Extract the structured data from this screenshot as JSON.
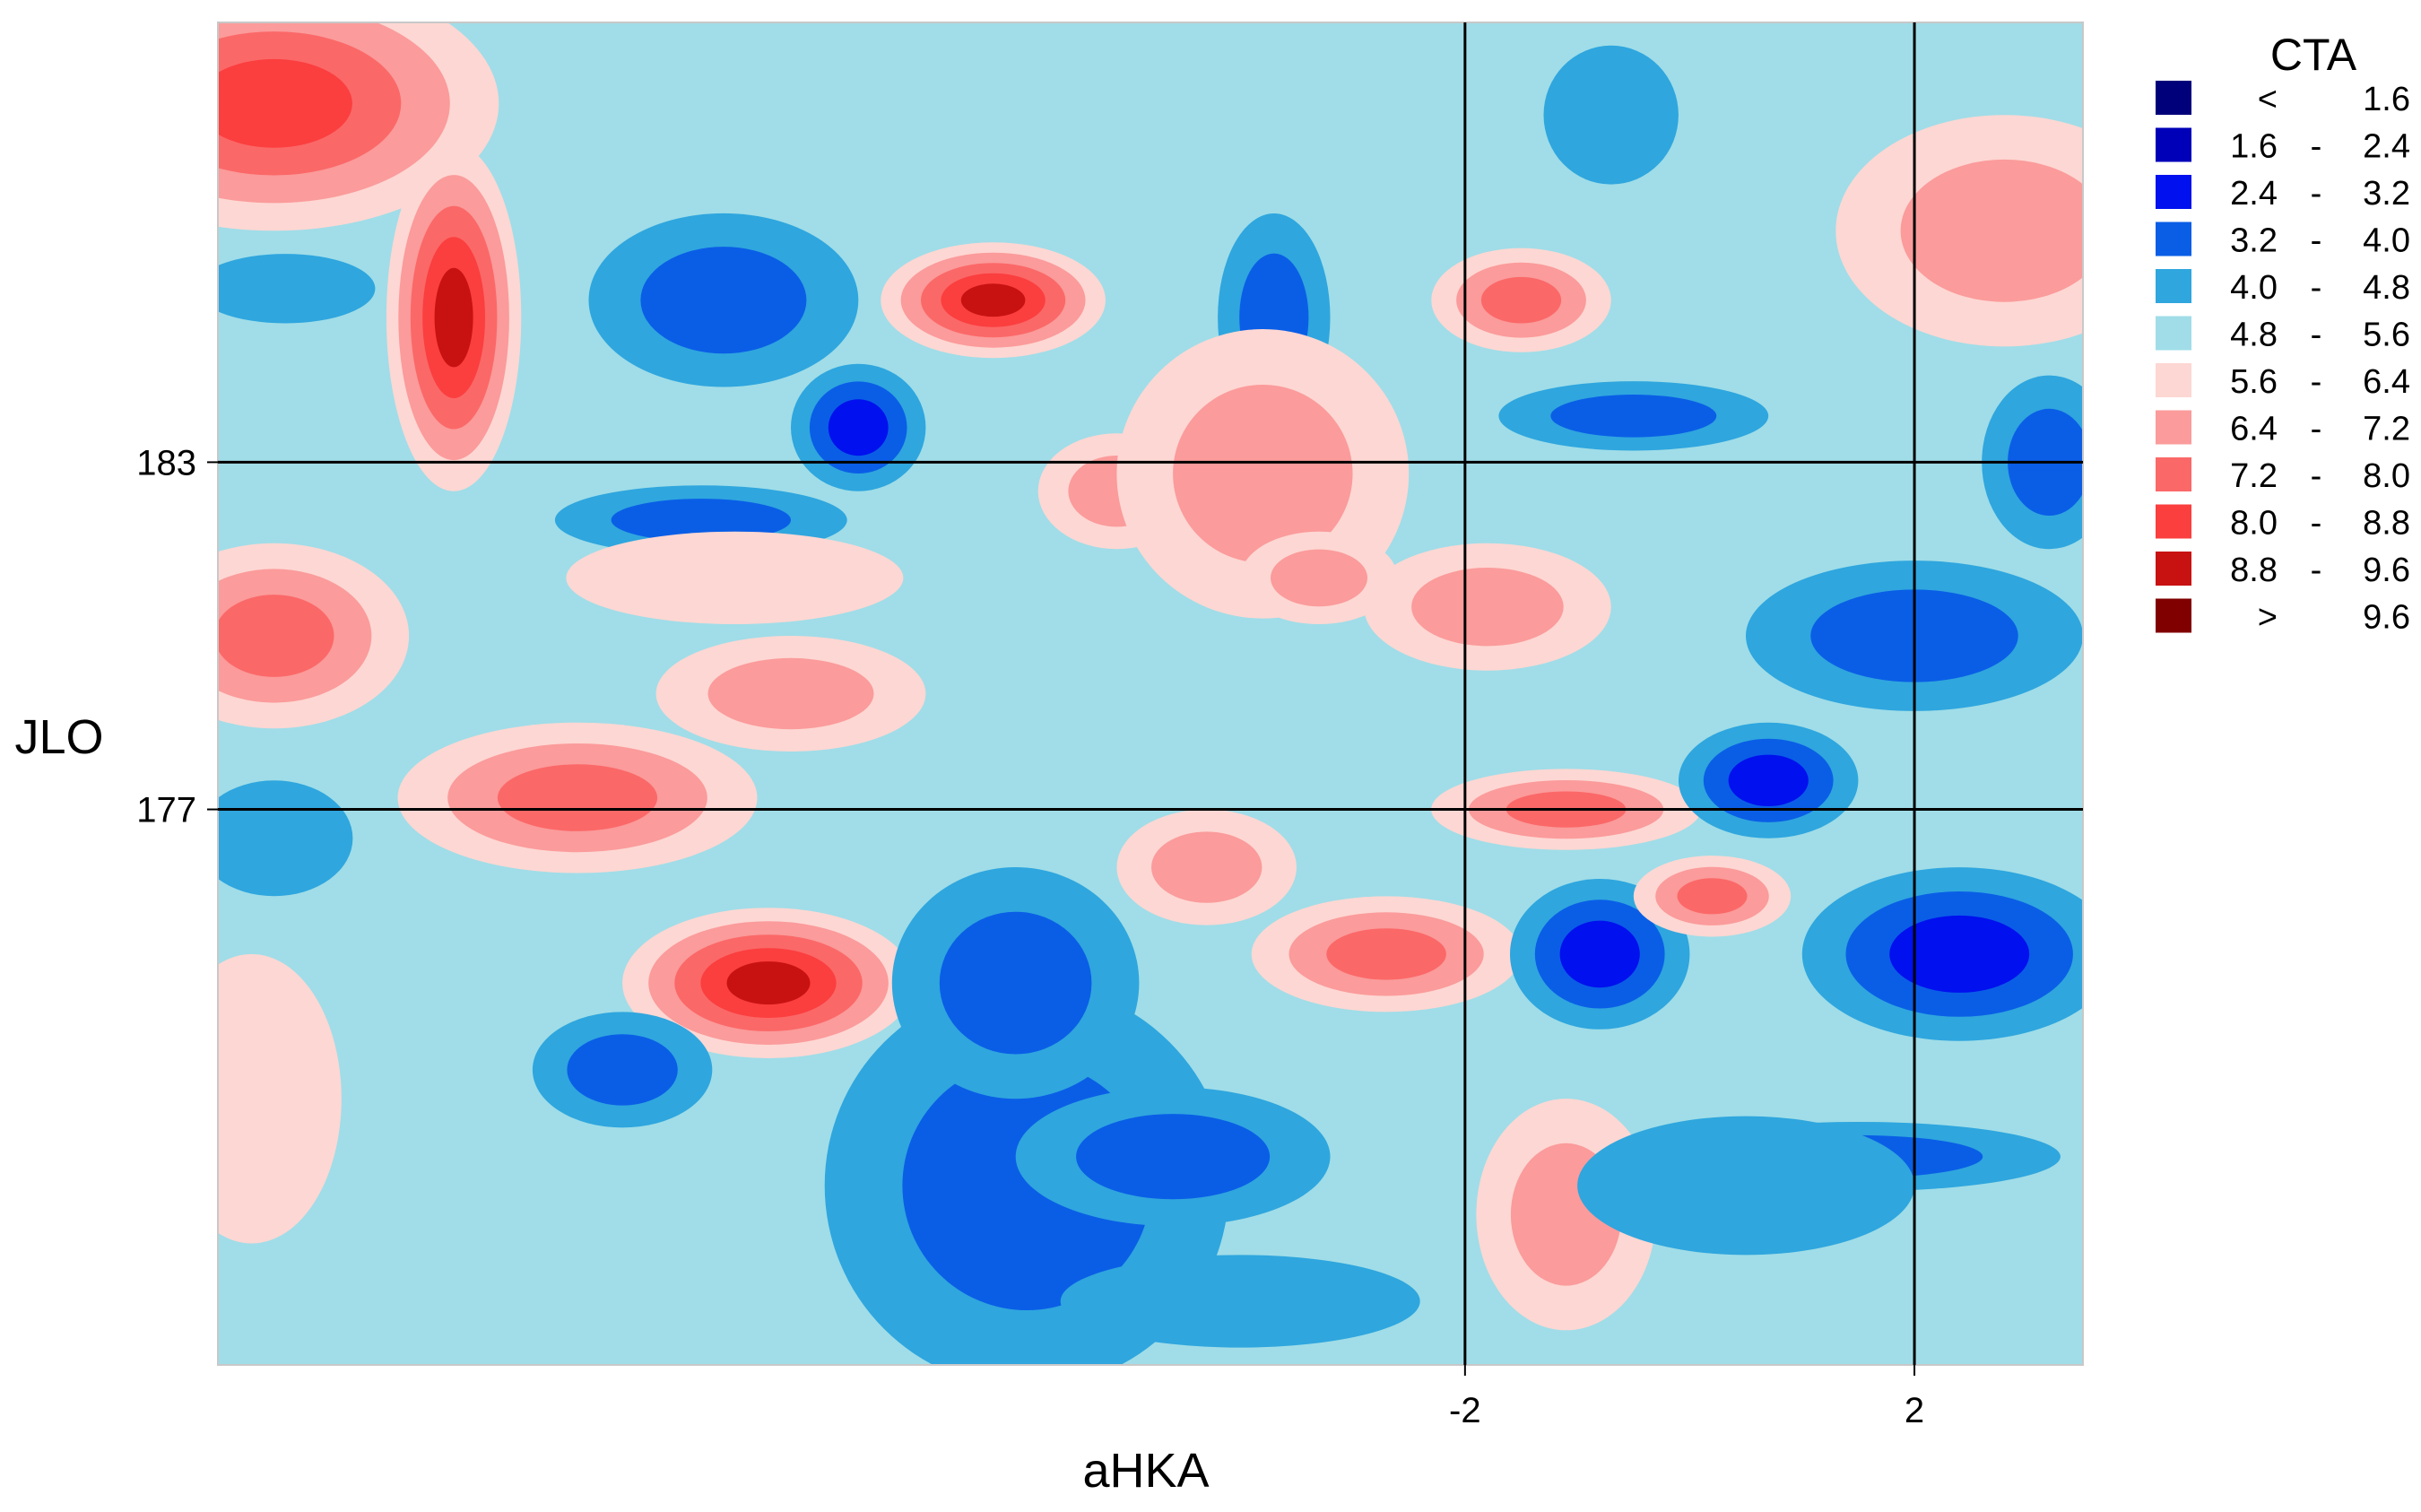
{
  "chart_data": {
    "type": "heatmap",
    "title": "",
    "xlabel": "aHKA",
    "ylabel": "JLO",
    "xlim": [
      -13.1,
      3.5
    ],
    "ylim": [
      190.6,
      167.4
    ],
    "x_ticks": [
      {
        "value": -2,
        "label": "-2"
      },
      {
        "value": 2,
        "label": "2"
      }
    ],
    "y_ticks": [
      {
        "value": 177,
        "label": "177"
      },
      {
        "value": 183,
        "label": "183"
      }
    ],
    "reference_lines": {
      "x": [
        -2,
        2
      ],
      "y": [
        177,
        183
      ]
    },
    "legend": {
      "title": "CTA",
      "placement": "right",
      "entries": [
        {
          "low": "<",
          "mid": "",
          "high": "1.6",
          "color": "#00007a"
        },
        {
          "low": "1.6",
          "mid": "-",
          "high": "2.4",
          "color": "#0000b8"
        },
        {
          "low": "2.4",
          "mid": "-",
          "high": "3.2",
          "color": "#0010ee"
        },
        {
          "low": "3.2",
          "mid": "-",
          "high": "4.0",
          "color": "#0a5ee6"
        },
        {
          "low": "4.0",
          "mid": "-",
          "high": "4.8",
          "color": "#2fa6de"
        },
        {
          "low": "4.8",
          "mid": "-",
          "high": "5.6",
          "color": "#a0dde8"
        },
        {
          "low": "5.6",
          "mid": "-",
          "high": "6.4",
          "color": "#fdd7d3"
        },
        {
          "low": "6.4",
          "mid": "-",
          "high": "7.2",
          "color": "#fb9b9b"
        },
        {
          "low": "7.2",
          "mid": "-",
          "high": "8.0",
          "color": "#fb6868"
        },
        {
          "low": "8.0",
          "mid": "-",
          "high": "8.8",
          "color": "#fb3e3e"
        },
        {
          "low": "8.8",
          "mid": "-",
          "high": "9.6",
          "color": "#c81212"
        },
        {
          "low": ">",
          "mid": "",
          "high": "9.6",
          "color": "#800000"
        }
      ]
    },
    "field_blobs": [
      {
        "x": -12.6,
        "y": 189.2,
        "level": 9,
        "rx": 2.0,
        "ry": 2.2
      },
      {
        "x": -11.0,
        "y": 185.5,
        "level": 10,
        "rx": 0.6,
        "ry": 3.0
      },
      {
        "x": -8.6,
        "y": 185.8,
        "level": 3,
        "rx": 1.2,
        "ry": 1.5
      },
      {
        "x": -6.2,
        "y": 185.8,
        "level": 10,
        "rx": 1.0,
        "ry": 1.0
      },
      {
        "x": -5.1,
        "y": 182.5,
        "level": 7,
        "rx": 0.7,
        "ry": 1.0
      },
      {
        "x": -3.7,
        "y": 185.5,
        "level": 3,
        "rx": 0.5,
        "ry": 1.8
      },
      {
        "x": -8.8,
        "y": 182.0,
        "level": 3,
        "rx": 1.3,
        "ry": 0.6
      },
      {
        "x": -7.4,
        "y": 183.6,
        "level": 2,
        "rx": 0.6,
        "ry": 1.1
      },
      {
        "x": -8.2,
        "y": 174.0,
        "level": 10,
        "rx": 1.3,
        "ry": 1.3
      },
      {
        "x": -9.9,
        "y": 177.2,
        "level": 8,
        "rx": 1.6,
        "ry": 1.3
      },
      {
        "x": -12.6,
        "y": 180.0,
        "level": 8,
        "rx": 1.2,
        "ry": 1.6
      },
      {
        "x": -9.5,
        "y": 172.5,
        "level": 3,
        "rx": 0.8,
        "ry": 1.0
      },
      {
        "x": -5.9,
        "y": 170.5,
        "level": 3,
        "rx": 1.8,
        "ry": 3.5
      },
      {
        "x": -4.6,
        "y": 171.0,
        "level": 3,
        "rx": 1.4,
        "ry": 1.2
      },
      {
        "x": -6.0,
        "y": 174.0,
        "level": 3,
        "rx": 1.1,
        "ry": 2.0
      },
      {
        "x": -2.7,
        "y": 174.5,
        "level": 8,
        "rx": 1.2,
        "ry": 1.0
      },
      {
        "x": -4.3,
        "y": 176.0,
        "level": 7,
        "rx": 0.8,
        "ry": 1.0
      },
      {
        "x": -1.1,
        "y": 177.0,
        "level": 8,
        "rx": 1.2,
        "ry": 0.7
      },
      {
        "x": -0.8,
        "y": 174.5,
        "level": 2,
        "rx": 0.8,
        "ry": 1.3
      },
      {
        "x": 0.2,
        "y": 175.5,
        "level": 8,
        "rx": 0.7,
        "ry": 0.7
      },
      {
        "x": 0.7,
        "y": 177.5,
        "level": 2,
        "rx": 0.8,
        "ry": 1.0
      },
      {
        "x": 2.4,
        "y": 174.5,
        "level": 2,
        "rx": 1.4,
        "ry": 1.5
      },
      {
        "x": 1.5,
        "y": 171.0,
        "level": 3,
        "rx": 1.8,
        "ry": 0.6
      },
      {
        "x": 2.0,
        "y": 180.0,
        "level": 3,
        "rx": 1.5,
        "ry": 1.3
      },
      {
        "x": 3.2,
        "y": 183.0,
        "level": 3,
        "rx": 0.6,
        "ry": 1.5
      },
      {
        "x": -1.8,
        "y": 180.5,
        "level": 7,
        "rx": 1.1,
        "ry": 1.1
      },
      {
        "x": -0.5,
        "y": 183.8,
        "level": 3,
        "rx": 1.2,
        "ry": 0.6
      },
      {
        "x": -1.5,
        "y": 185.8,
        "level": 8,
        "rx": 0.8,
        "ry": 0.9
      },
      {
        "x": -0.7,
        "y": 189.0,
        "level": 4,
        "rx": 0.6,
        "ry": 1.2
      },
      {
        "x": 2.8,
        "y": 187.0,
        "level": 7,
        "rx": 1.5,
        "ry": 2.0
      },
      {
        "x": -1.1,
        "y": 170.0,
        "level": 7,
        "rx": 0.8,
        "ry": 2.0
      },
      {
        "x": 0.5,
        "y": 170.5,
        "level": 4,
        "rx": 1.5,
        "ry": 1.2
      },
      {
        "x": -12.8,
        "y": 172.0,
        "level": 6,
        "rx": 0.8,
        "ry": 2.5
      },
      {
        "x": -12.5,
        "y": 186.0,
        "level": 4,
        "rx": 0.8,
        "ry": 0.6
      },
      {
        "x": -12.6,
        "y": 176.5,
        "level": 4,
        "rx": 0.7,
        "ry": 1.0
      },
      {
        "x": -3.8,
        "y": 182.8,
        "level": 7,
        "rx": 1.3,
        "ry": 2.5
      },
      {
        "x": -8.5,
        "y": 181.0,
        "level": 6,
        "rx": 1.5,
        "ry": 0.8
      },
      {
        "x": -8.0,
        "y": 179.0,
        "level": 7,
        "rx": 1.2,
        "ry": 1.0
      },
      {
        "x": -4.0,
        "y": 168.5,
        "level": 4,
        "rx": 1.6,
        "ry": 0.8
      },
      {
        "x": -3.3,
        "y": 181.0,
        "level": 7,
        "rx": 0.7,
        "ry": 0.8
      },
      {
        "x": -5.8,
        "y": 186.5,
        "level": 5,
        "rx": 2.0,
        "ry": 2.0
      },
      {
        "x": -6.2,
        "y": 187.8,
        "level": 5,
        "rx": 1.5,
        "ry": 1.5
      }
    ]
  }
}
